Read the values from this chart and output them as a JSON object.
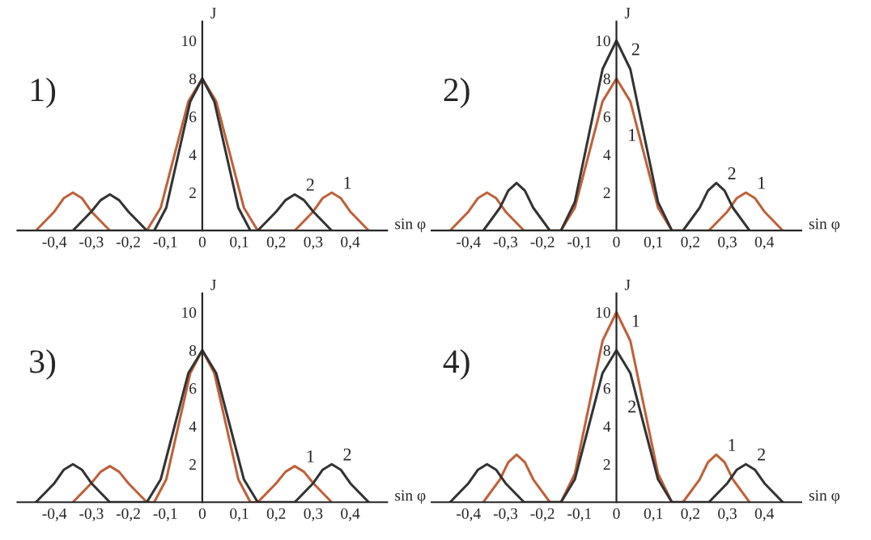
{
  "chart_data": [
    {
      "type": "line",
      "title": "1)",
      "xlabel": "sin φ",
      "ylabel": "J",
      "xlim": [
        -0.5,
        0.5
      ],
      "ylim": [
        0,
        11
      ],
      "xticks": [
        {
          "value": -0.4,
          "label": "-0,4"
        },
        {
          "value": -0.3,
          "label": "-0,3"
        },
        {
          "value": -0.2,
          "label": "-0,2"
        },
        {
          "value": -0.1,
          "label": "-0,1"
        },
        {
          "value": 0,
          "label": "0"
        },
        {
          "value": 0.1,
          "label": "0,1"
        },
        {
          "value": 0.2,
          "label": "0,2"
        },
        {
          "value": 0.3,
          "label": "0,3"
        },
        {
          "value": 0.4,
          "label": "0,4"
        }
      ],
      "yticks": [
        2,
        4,
        6,
        8,
        10
      ],
      "grid": false,
      "legend": false,
      "series": [
        {
          "name": "1",
          "color": "#c0603a",
          "x": [
            -0.45,
            -0.4,
            -0.375,
            -0.35,
            -0.325,
            -0.3,
            -0.25,
            -0.15,
            -0.1125,
            -0.075,
            -0.0375,
            0,
            0.0375,
            0.075,
            0.1125,
            0.15,
            0.25,
            0.3,
            0.325,
            0.35,
            0.375,
            0.4,
            0.45
          ],
          "values": [
            0,
            1.0,
            1.7,
            2,
            1.7,
            1.0,
            0,
            0,
            1.2,
            4,
            6.8,
            8,
            6.8,
            4,
            1.2,
            0,
            0,
            1.0,
            1.7,
            2,
            1.7,
            1.0,
            0
          ]
        },
        {
          "name": "2",
          "color": "#333333",
          "x": [
            -0.35,
            -0.3,
            -0.275,
            -0.25,
            -0.225,
            -0.2,
            -0.15,
            -0.13,
            -0.0975,
            -0.065,
            -0.0325,
            0,
            0.0325,
            0.065,
            0.0975,
            0.13,
            0.15,
            0.2,
            0.225,
            0.25,
            0.275,
            0.3,
            0.35
          ],
          "values": [
            0,
            1.0,
            1.6,
            1.9,
            1.6,
            1.0,
            0,
            0,
            1.2,
            4,
            6.8,
            8,
            6.8,
            4,
            1.2,
            0,
            0,
            1.0,
            1.6,
            1.9,
            1.6,
            1.0,
            0
          ]
        }
      ]
    },
    {
      "type": "line",
      "title": "2)",
      "xlabel": "sin φ",
      "ylabel": "J",
      "xlim": [
        -0.5,
        0.5
      ],
      "ylim": [
        0,
        11
      ],
      "xticks": [
        {
          "value": -0.4,
          "label": "-0,4"
        },
        {
          "value": -0.3,
          "label": "-0,3"
        },
        {
          "value": -0.2,
          "label": "-0,2"
        },
        {
          "value": -0.1,
          "label": "-0,1"
        },
        {
          "value": 0,
          "label": "0"
        },
        {
          "value": 0.1,
          "label": "0,1"
        },
        {
          "value": 0.2,
          "label": "0,2"
        },
        {
          "value": 0.3,
          "label": "0,3"
        },
        {
          "value": 0.4,
          "label": "0,4"
        }
      ],
      "yticks": [
        2,
        4,
        6,
        8,
        10
      ],
      "grid": false,
      "legend": false,
      "annotations": [
        "2",
        "1"
      ],
      "series": [
        {
          "name": "1",
          "color": "#c0603a",
          "x": [
            -0.45,
            -0.4,
            -0.375,
            -0.35,
            -0.325,
            -0.3,
            -0.25,
            -0.15,
            -0.1125,
            -0.075,
            -0.0375,
            0,
            0.0375,
            0.075,
            0.1125,
            0.15,
            0.25,
            0.3,
            0.325,
            0.35,
            0.375,
            0.4,
            0.45
          ],
          "values": [
            0,
            1.0,
            1.7,
            2,
            1.7,
            1.0,
            0,
            0,
            1.2,
            4,
            6.8,
            8,
            6.8,
            4,
            1.2,
            0,
            0,
            1.0,
            1.7,
            2,
            1.7,
            1.0,
            0
          ]
        },
        {
          "name": "2",
          "color": "#333333",
          "x": [
            -0.36,
            -0.315,
            -0.2925,
            -0.27,
            -0.2475,
            -0.225,
            -0.18,
            -0.15,
            -0.1125,
            -0.075,
            -0.0375,
            0,
            0.0375,
            0.075,
            0.1125,
            0.15,
            0.18,
            0.225,
            0.2475,
            0.27,
            0.2925,
            0.315,
            0.36
          ],
          "values": [
            0,
            1.2,
            2.1,
            2.5,
            2.1,
            1.2,
            0,
            0,
            1.5,
            5,
            8.5,
            10,
            8.5,
            5,
            1.5,
            0,
            0,
            1.2,
            2.1,
            2.5,
            2.1,
            1.2,
            0
          ]
        }
      ]
    },
    {
      "type": "line",
      "title": "3)",
      "xlabel": "sin φ",
      "ylabel": "J",
      "xlim": [
        -0.5,
        0.5
      ],
      "ylim": [
        0,
        11
      ],
      "xticks": [
        {
          "value": -0.4,
          "label": "-0,4"
        },
        {
          "value": -0.3,
          "label": "-0,3"
        },
        {
          "value": -0.2,
          "label": "-0,2"
        },
        {
          "value": -0.1,
          "label": "-0,1"
        },
        {
          "value": 0,
          "label": "0"
        },
        {
          "value": 0.1,
          "label": "0,1"
        },
        {
          "value": 0.2,
          "label": "0,2"
        },
        {
          "value": 0.3,
          "label": "0,3"
        },
        {
          "value": 0.4,
          "label": "0,4"
        }
      ],
      "yticks": [
        2,
        4,
        6,
        8,
        10
      ],
      "grid": false,
      "legend": false,
      "series": [
        {
          "name": "1",
          "color": "#c0603a",
          "x": [
            -0.35,
            -0.3,
            -0.275,
            -0.25,
            -0.225,
            -0.2,
            -0.15,
            -0.13,
            -0.0975,
            -0.065,
            -0.0325,
            0,
            0.0325,
            0.065,
            0.0975,
            0.13,
            0.15,
            0.2,
            0.225,
            0.25,
            0.275,
            0.3,
            0.35
          ],
          "values": [
            0,
            1.0,
            1.6,
            1.9,
            1.6,
            1.0,
            0,
            0,
            1.2,
            4,
            6.8,
            8,
            6.8,
            4,
            1.2,
            0,
            0,
            1.0,
            1.6,
            1.9,
            1.6,
            1.0,
            0
          ]
        },
        {
          "name": "2",
          "color": "#333333",
          "x": [
            -0.45,
            -0.4,
            -0.375,
            -0.35,
            -0.325,
            -0.3,
            -0.25,
            -0.15,
            -0.1125,
            -0.075,
            -0.0375,
            0,
            0.0375,
            0.075,
            0.1125,
            0.15,
            0.25,
            0.3,
            0.325,
            0.35,
            0.375,
            0.4,
            0.45
          ],
          "values": [
            0,
            1.0,
            1.7,
            2,
            1.7,
            1.0,
            0,
            0,
            1.2,
            4,
            6.8,
            8,
            6.8,
            4,
            1.2,
            0,
            0,
            1.0,
            1.7,
            2,
            1.7,
            1.0,
            0
          ]
        }
      ]
    },
    {
      "type": "line",
      "title": "4)",
      "xlabel": "sin φ",
      "ylabel": "J",
      "xlim": [
        -0.5,
        0.5
      ],
      "ylim": [
        0,
        11
      ],
      "xticks": [
        {
          "value": -0.4,
          "label": "-0,4"
        },
        {
          "value": -0.3,
          "label": "-0,3"
        },
        {
          "value": -0.2,
          "label": "-0,2"
        },
        {
          "value": -0.1,
          "label": "-0,1"
        },
        {
          "value": 0,
          "label": "0"
        },
        {
          "value": 0.1,
          "label": "0,1"
        },
        {
          "value": 0.2,
          "label": "0,2"
        },
        {
          "value": 0.3,
          "label": "0,3"
        },
        {
          "value": 0.4,
          "label": "0,4"
        }
      ],
      "yticks": [
        2,
        4,
        6,
        8,
        10
      ],
      "grid": false,
      "legend": false,
      "annotations": [
        "1",
        "2"
      ],
      "series": [
        {
          "name": "1",
          "color": "#c0603a",
          "x": [
            -0.36,
            -0.315,
            -0.2925,
            -0.27,
            -0.2475,
            -0.225,
            -0.18,
            -0.15,
            -0.1125,
            -0.075,
            -0.0375,
            0,
            0.0375,
            0.075,
            0.1125,
            0.15,
            0.18,
            0.225,
            0.2475,
            0.27,
            0.2925,
            0.315,
            0.36
          ],
          "values": [
            0,
            1.2,
            2.1,
            2.5,
            2.1,
            1.2,
            0,
            0,
            1.5,
            5,
            8.5,
            10,
            8.5,
            5,
            1.5,
            0,
            0,
            1.2,
            2.1,
            2.5,
            2.1,
            1.2,
            0
          ]
        },
        {
          "name": "2",
          "color": "#333333",
          "x": [
            -0.45,
            -0.4,
            -0.375,
            -0.35,
            -0.325,
            -0.3,
            -0.25,
            -0.15,
            -0.1125,
            -0.075,
            -0.0375,
            0,
            0.0375,
            0.075,
            0.1125,
            0.15,
            0.25,
            0.3,
            0.325,
            0.35,
            0.375,
            0.4,
            0.45
          ],
          "values": [
            0,
            1.0,
            1.7,
            2,
            1.7,
            1.0,
            0,
            0,
            1.2,
            4,
            6.8,
            8,
            6.8,
            4,
            1.2,
            0,
            0,
            1.0,
            1.7,
            2,
            1.7,
            1.0,
            0
          ]
        }
      ]
    }
  ]
}
